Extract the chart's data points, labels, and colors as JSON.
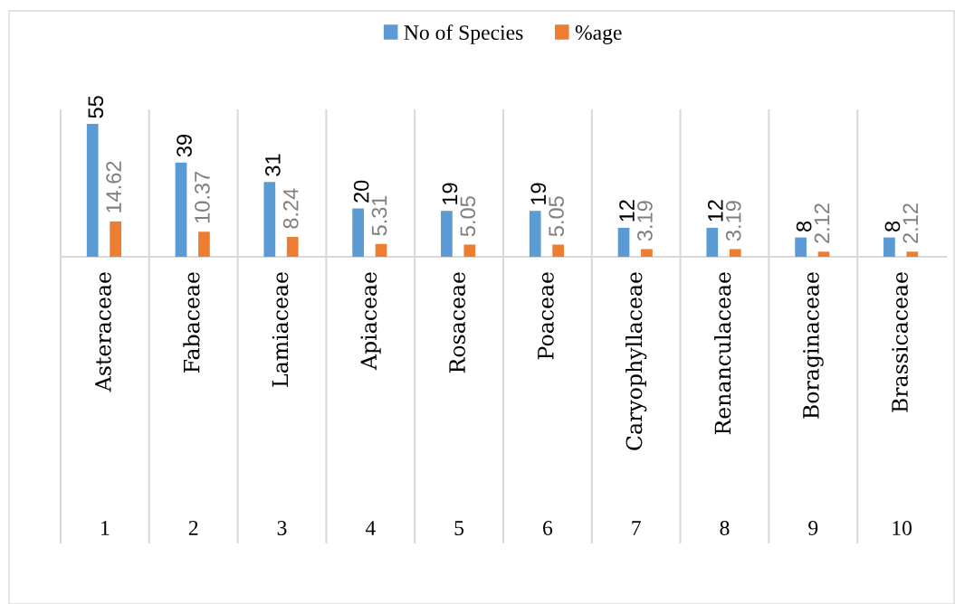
{
  "chart_data": {
    "type": "bar",
    "categories": [
      "Asteraceae",
      "Fabaceae",
      "Lamiaceae",
      "Apiaceae",
      "Rosaceae",
      "Poaceae",
      "Caryophyllaceae",
      "Renanculaceae",
      "Boraginaceae",
      "Brassicaceae"
    ],
    "series": [
      {
        "name": "No of Species",
        "color": "#5b9bd5",
        "values": [
          55,
          39,
          31,
          20,
          19,
          19,
          12,
          12,
          8,
          8
        ]
      },
      {
        "name": "%age",
        "color": "#ed7d31",
        "values": [
          14.62,
          10.37,
          8.24,
          5.31,
          5.05,
          5.05,
          3.19,
          3.19,
          2.12,
          2.12
        ]
      }
    ],
    "data_labels": true,
    "grid": "x",
    "legend": "top",
    "tick_labels": "x",
    "annotations": [
      "1",
      "2",
      "3",
      "4",
      "5",
      "6",
      "7",
      "8",
      "9",
      "10"
    ]
  }
}
